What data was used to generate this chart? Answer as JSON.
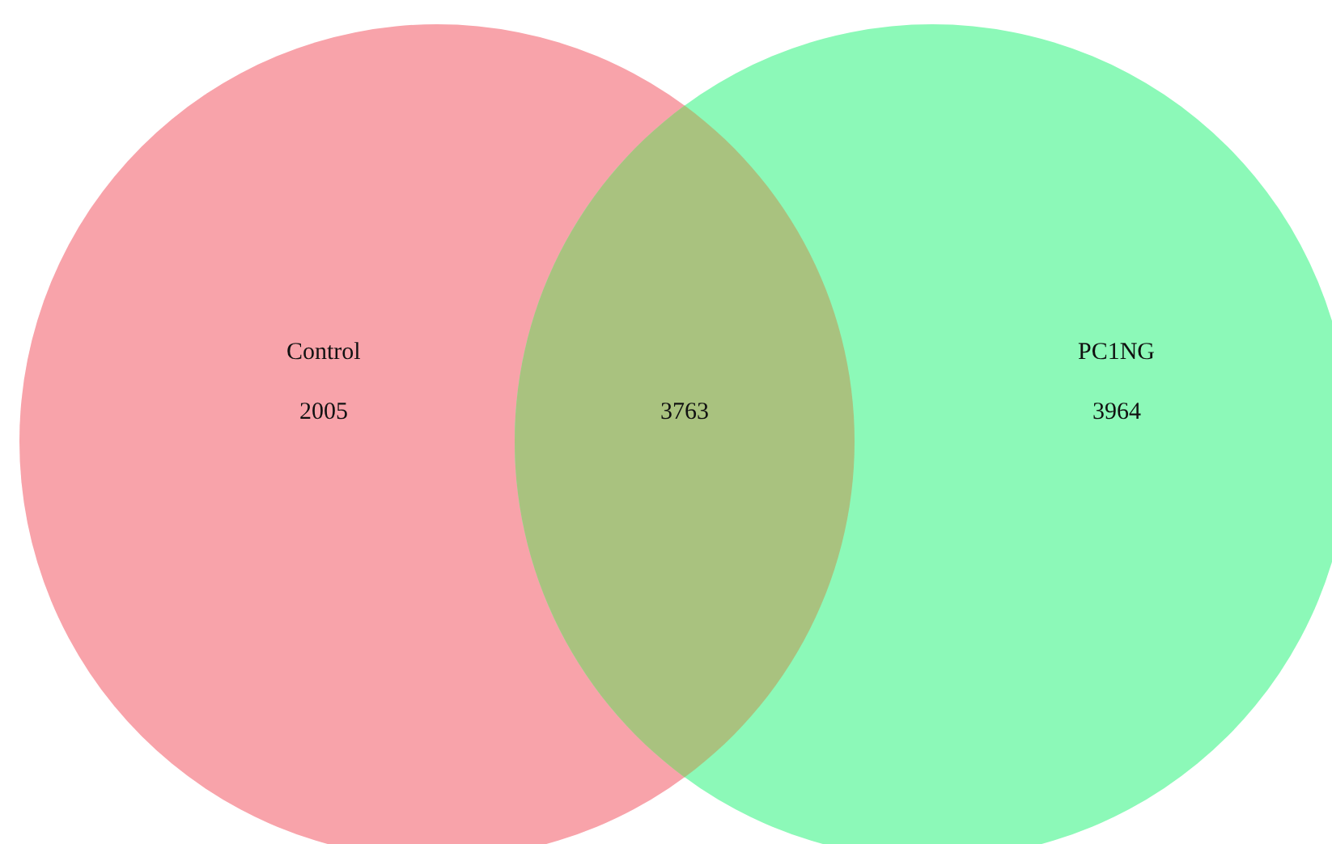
{
  "chart_data": {
    "type": "other",
    "categories": [
      "Control",
      null,
      "PC1NG"
    ],
    "values": [
      2005,
      3763,
      3964
    ],
    "colors": [
      "#f8a3aa",
      "#a9c27f",
      "#8cf9b8"
    ],
    "data_labels": true
  }
}
